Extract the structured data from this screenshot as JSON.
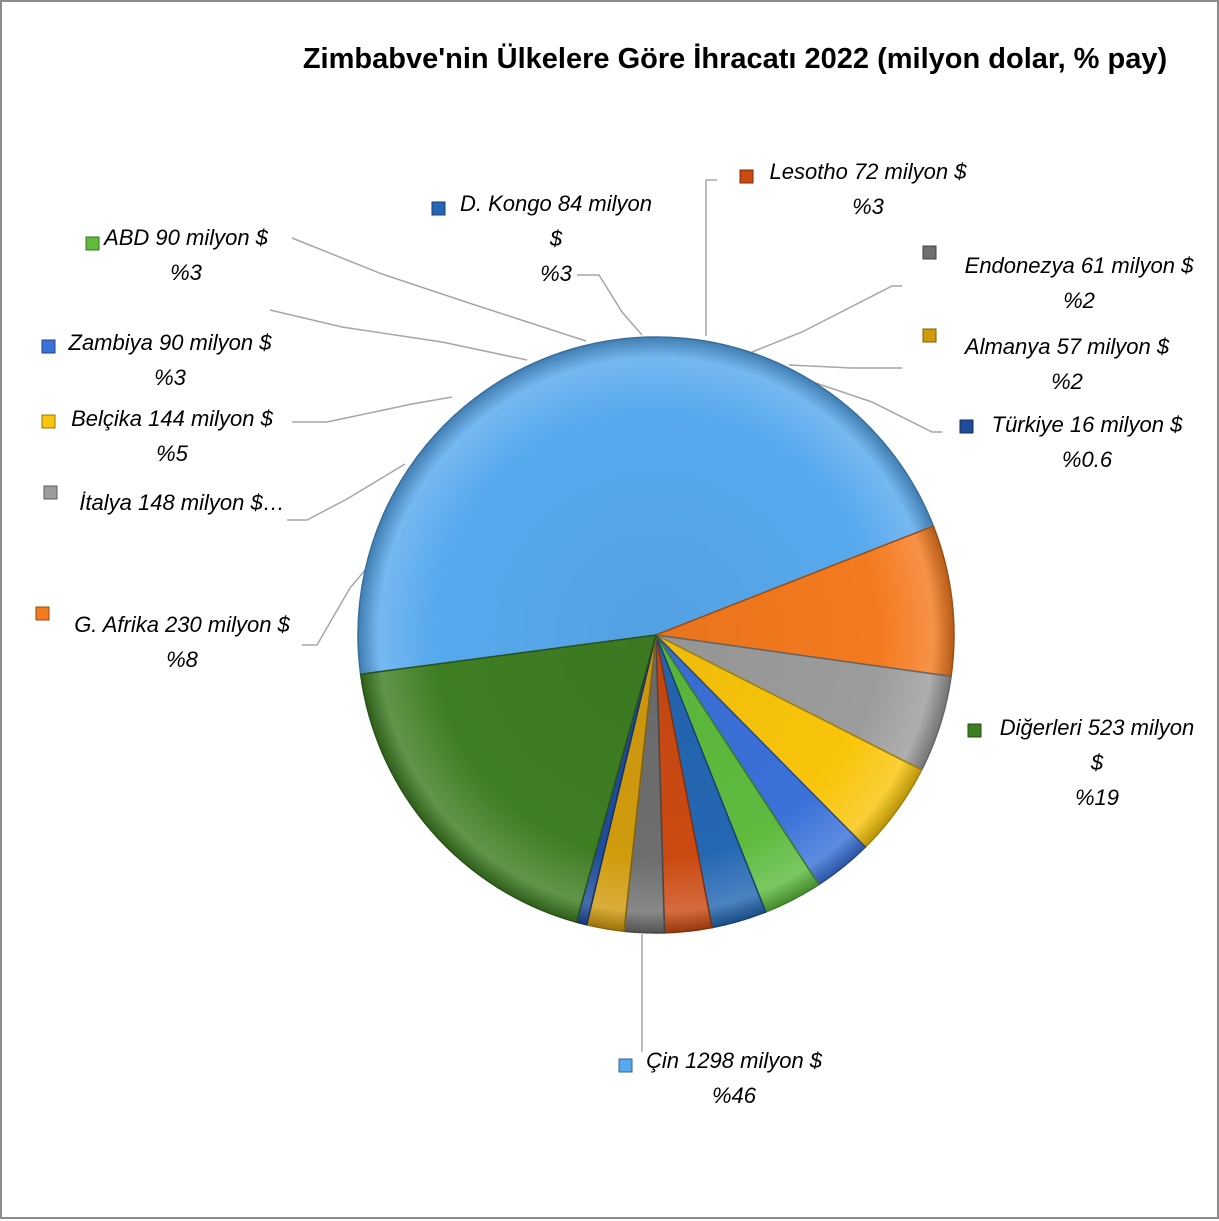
{
  "chart_data": {
    "type": "pie",
    "title": "Zimbabve'nin Ülkelere Göre İhracatı 2022 (milyon dolar, % pay)",
    "unit": "milyon $",
    "legend_placement": "data labels with leader lines",
    "slices": [
      {
        "name": "Çin",
        "value": 1298,
        "share": 46,
        "color": "#57A9EE",
        "label_lines": [
          "Çin 1298 milyon $",
          "%46"
        ]
      },
      {
        "name": "G. Afrika",
        "value": 230,
        "share": 8,
        "color": "#F47A1F",
        "label_lines": [
          "G. Afrika 230 milyon $",
          "%8"
        ]
      },
      {
        "name": "İtalya",
        "value": 148,
        "share": 5,
        "color": "#9C9C9C",
        "label_lines": [
          "İtalya 148 milyon $…"
        ]
      },
      {
        "name": "Belçika",
        "value": 144,
        "share": 5,
        "color": "#F9C50B",
        "label_lines": [
          "Belçika 144 milyon $",
          "%5"
        ]
      },
      {
        "name": "Zambiya",
        "value": 90,
        "share": 3,
        "color": "#3B72D9",
        "label_lines": [
          "Zambiya 90 milyon $",
          "%3"
        ]
      },
      {
        "name": "ABD",
        "value": 90,
        "share": 3,
        "color": "#5EBB3E",
        "label_lines": [
          "ABD 90 milyon $",
          "%3"
        ]
      },
      {
        "name": "D. Kongo",
        "value": 84,
        "share": 3,
        "color": "#2467B3",
        "label_lines": [
          "D. Kongo 84 milyon",
          "$",
          "%3"
        ]
      },
      {
        "name": "Lesotho",
        "value": 72,
        "share": 3,
        "color": "#CB4A12",
        "label_lines": [
          "Lesotho 72 milyon $",
          "%3"
        ]
      },
      {
        "name": "Endonezya",
        "value": 61,
        "share": 2,
        "color": "#6E6E6E",
        "label_lines": [
          "Endonezya 61 milyon $",
          "%2"
        ]
      },
      {
        "name": "Almanya",
        "value": 57,
        "share": 2,
        "color": "#D19B0E",
        "label_lines": [
          "Almanya 57 milyon $",
          "%2"
        ]
      },
      {
        "name": "Türkiye",
        "value": 16,
        "share": 0.6,
        "color": "#1F4C9A",
        "label_lines": [
          "Türkiye 16 milyon $",
          "%0.6"
        ]
      },
      {
        "name": "Diğerleri",
        "value": 523,
        "share": 19,
        "color": "#3E7E23",
        "label_lines": [
          "Diğerleri 523 milyon",
          "$",
          "%19"
        ]
      }
    ]
  }
}
